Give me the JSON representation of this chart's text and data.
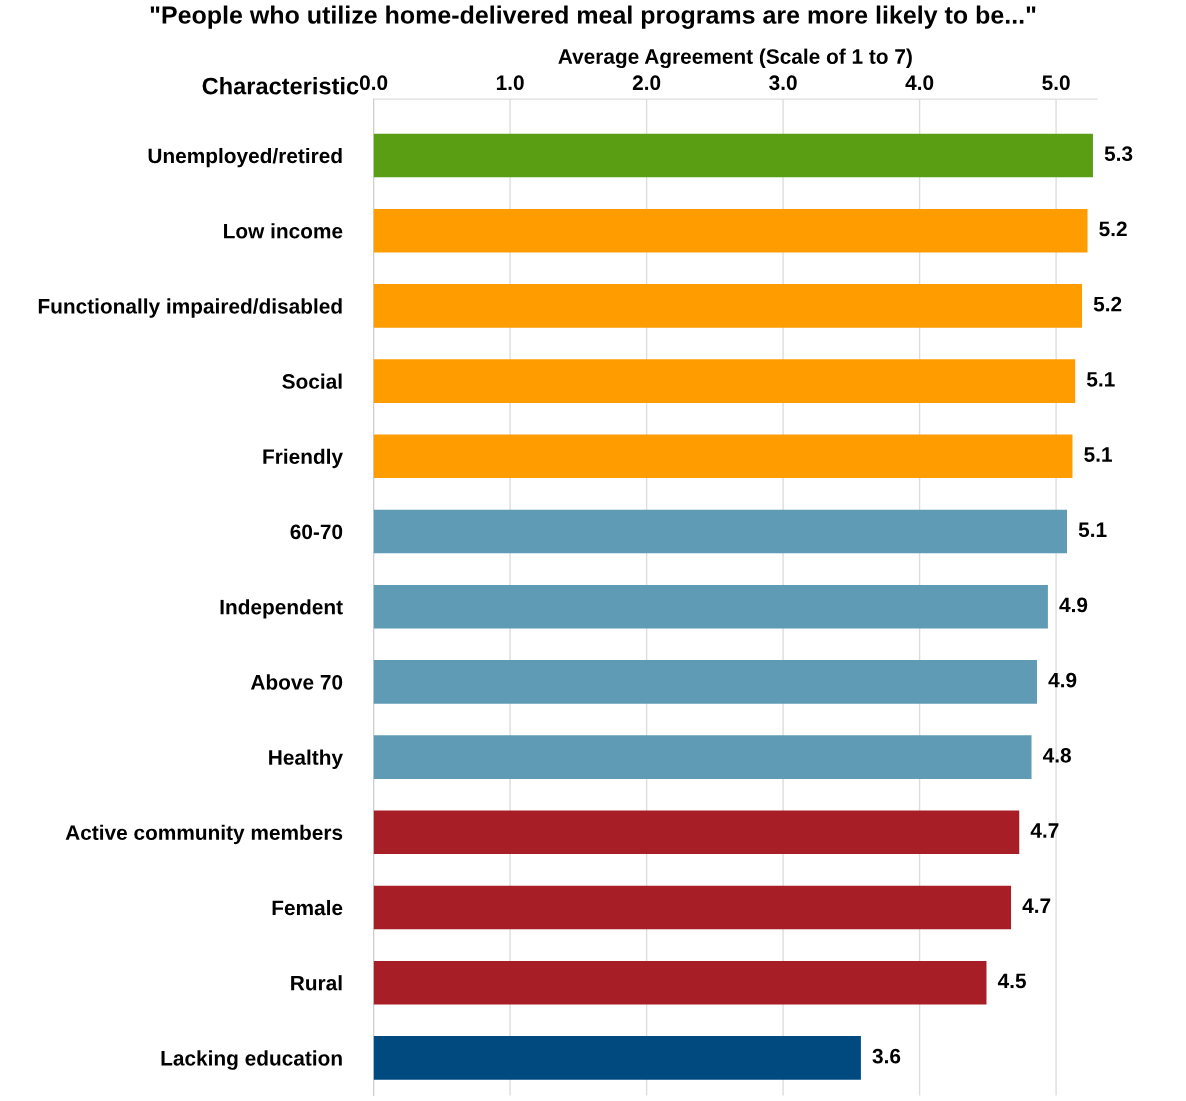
{
  "chart_data": {
    "type": "bar",
    "orientation": "horizontal",
    "title": "\"People who utilize home-delivered meal programs are more likely to be...\"",
    "xlabel": "Average Agreement (Scale of 1 to 7)",
    "ylabel": "Characteristic",
    "categories": [
      "Unemployed/retired",
      "Low income",
      "Functionally impaired/disabled",
      "Social",
      "Friendly",
      "60-70",
      "Independent",
      "Above 70",
      "Healthy",
      "Active community members",
      "Female",
      "Rural",
      "Lacking education"
    ],
    "values": [
      5.27,
      5.23,
      5.19,
      5.14,
      5.12,
      5.08,
      4.94,
      4.86,
      4.82,
      4.73,
      4.67,
      4.49,
      3.57
    ],
    "value_labels": [
      "5.3",
      "5.2",
      "5.2",
      "5.1",
      "5.1",
      "5.1",
      "4.9",
      "4.9",
      "4.8",
      "4.7",
      "4.7",
      "4.5",
      "3.6"
    ],
    "colors": [
      "#5a9e14",
      "#ff9c00",
      "#ff9c00",
      "#ff9c00",
      "#ff9c00",
      "#5f9bb5",
      "#5f9bb5",
      "#5f9bb5",
      "#5f9bb5",
      "#a81e26",
      "#a81e26",
      "#a81e26",
      "#004a80"
    ],
    "xlim": [
      0,
      5.3
    ],
    "xticks": [
      {
        "value": 0,
        "label": "0.0"
      },
      {
        "value": 1,
        "label": "1.0"
      },
      {
        "value": 2,
        "label": "2.0"
      },
      {
        "value": 3,
        "label": "3.0"
      },
      {
        "value": 4,
        "label": "4.0"
      },
      {
        "value": 5,
        "label": "5.0"
      }
    ],
    "grid": "x"
  }
}
